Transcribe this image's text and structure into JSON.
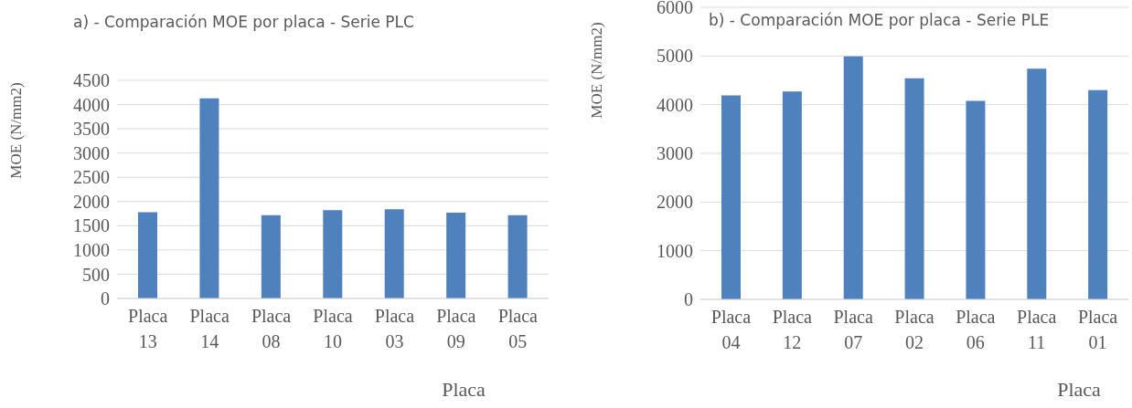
{
  "chart_data": [
    {
      "type": "bar",
      "title": "a) - Comparación MOE por placa - Serie PLC",
      "xlabel": "Placa",
      "ylabel": "MOE (N/mm2)",
      "categories": [
        "Placa 13",
        "Placa 14",
        "Placa 08",
        "Placa 10",
        "Placa 03",
        "Placa 09",
        "Placa 05"
      ],
      "values": [
        1780,
        4130,
        1720,
        1820,
        1840,
        1770,
        1720
      ],
      "color": "#4f81bd",
      "ylim": [
        0,
        4500
      ],
      "yticks": [
        0,
        500,
        1000,
        1500,
        2000,
        2500,
        3000,
        3500,
        4000,
        4500
      ],
      "grid": "y"
    },
    {
      "type": "bar",
      "title": "b) - Comparación MOE por placa - Serie PLE",
      "xlabel": "Placa",
      "ylabel": "MOE (N/mm2)",
      "categories": [
        "Placa 04",
        "Placa 12",
        "Placa 07",
        "Placa 02",
        "Placa 06",
        "Placa 11",
        "Placa 01"
      ],
      "values": [
        4190,
        4270,
        4990,
        4540,
        4080,
        4740,
        4300
      ],
      "color": "#4f81bd",
      "ylim": [
        0,
        6000
      ],
      "yticks": [
        0,
        1000,
        2000,
        3000,
        4000,
        5000,
        6000
      ],
      "grid": "y"
    }
  ]
}
